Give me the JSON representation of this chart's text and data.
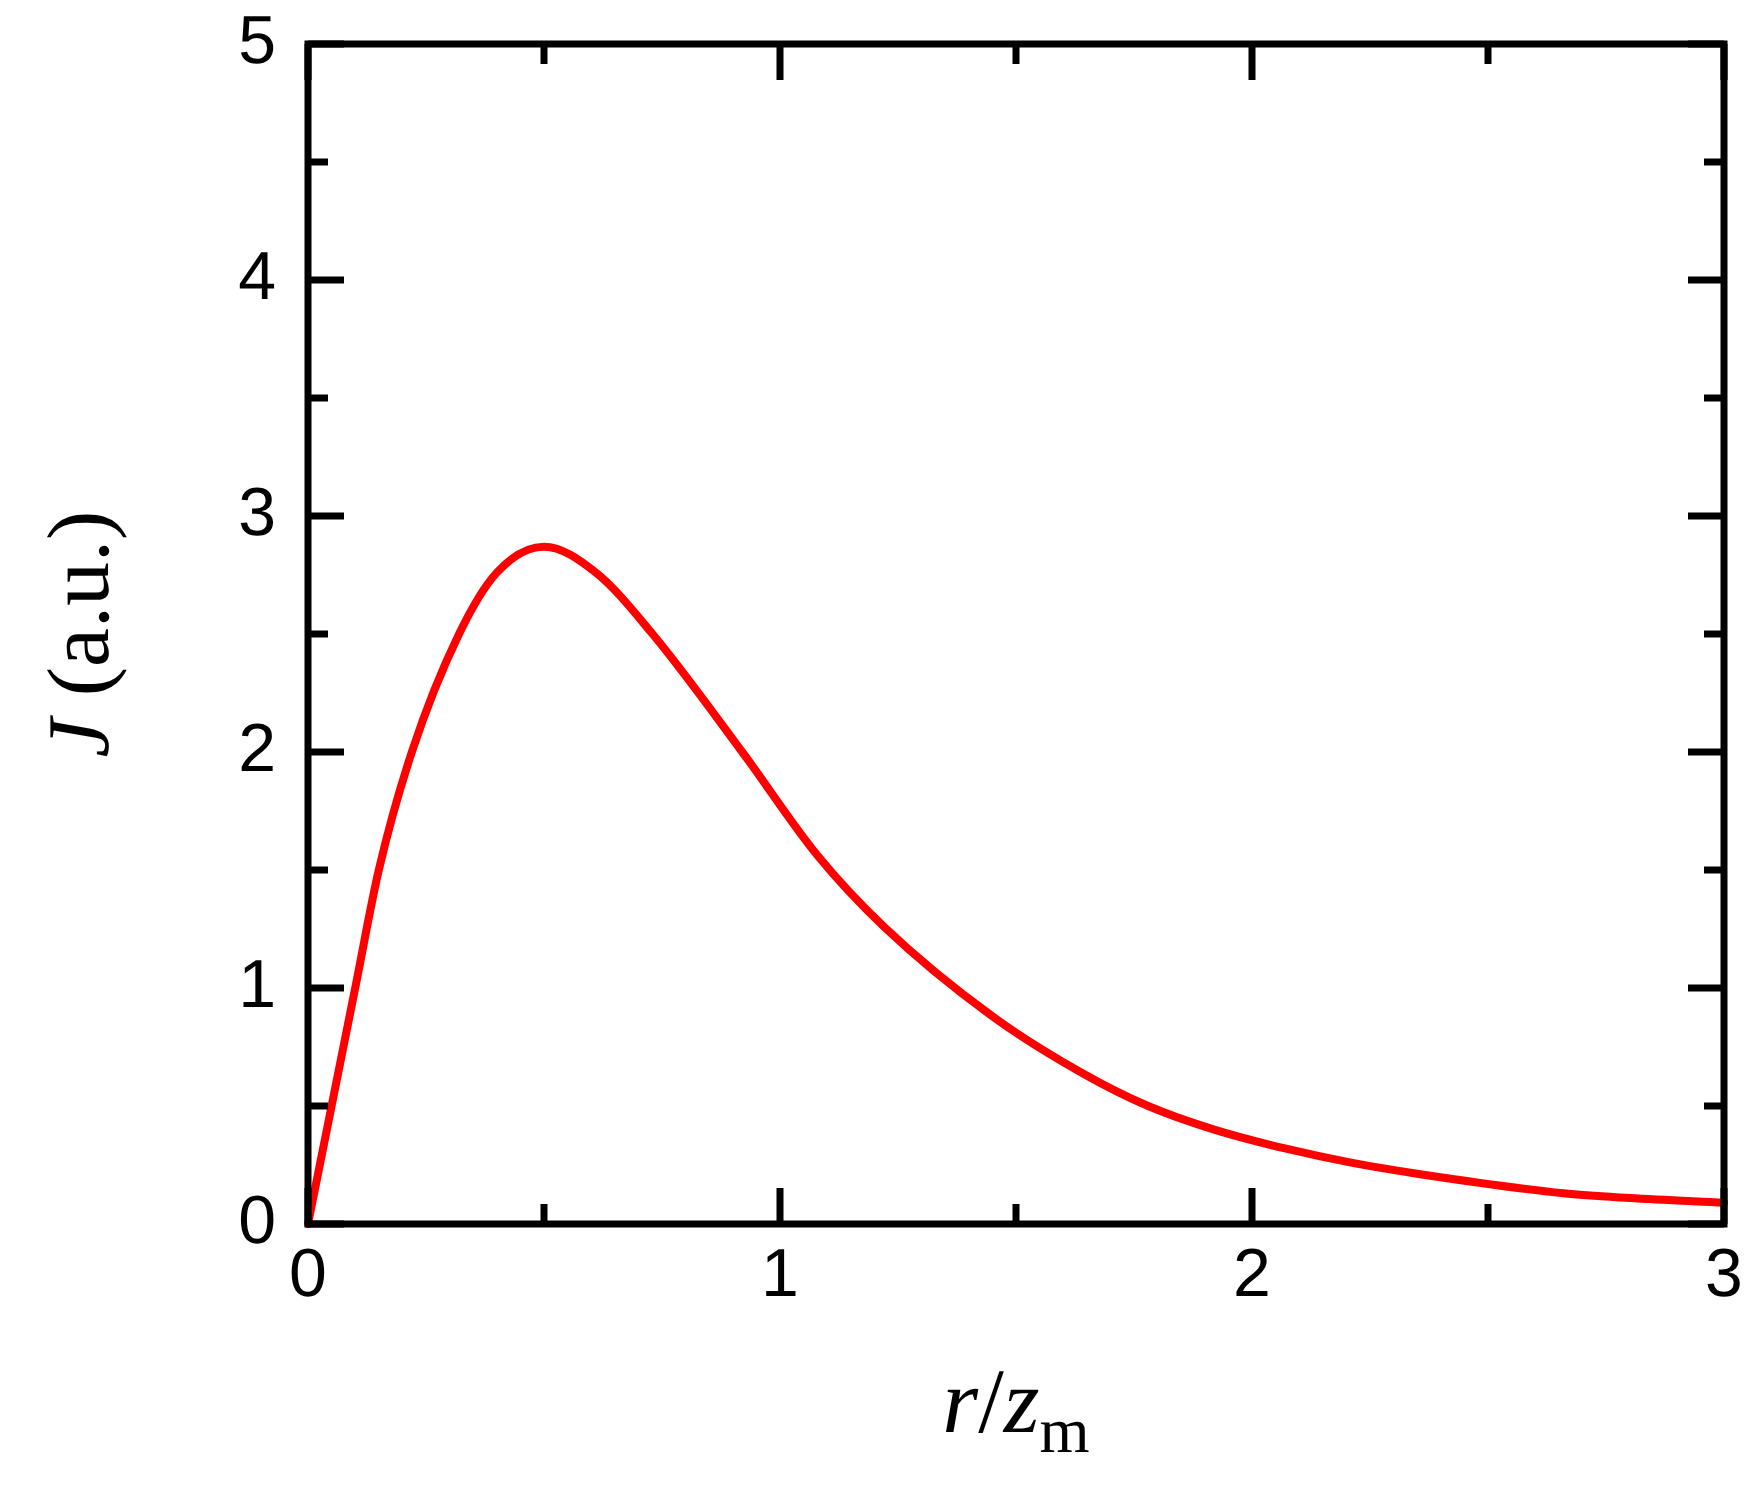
{
  "chart_data": {
    "type": "line",
    "xlabel": "r/z$_{m}$",
    "ylabel": "J (a.u.)",
    "x": [
      0,
      0.05,
      0.1,
      0.15,
      0.22,
      0.32,
      0.4,
      0.5,
      0.61,
      0.73,
      0.92,
      1.08,
      1.22,
      1.45,
      1.64,
      1.78,
      1.92,
      2.07,
      2.21,
      2.36,
      2.66,
      2.8,
      3
    ],
    "values": [
      0,
      0.5,
      1,
      1.5,
      2,
      2.5,
      2.76,
      2.87,
      2.76,
      2.5,
      2,
      1.56,
      1.26,
      0.88,
      0.64,
      0.5,
      0.4,
      0.32,
      0.26,
      0.21,
      0.13,
      0.11,
      0.09
    ],
    "color": "#ff0000",
    "marker": "none",
    "line_style": "solid",
    "grid": false,
    "legend": false,
    "xlim": [
      0,
      3
    ],
    "xticks": [
      0,
      {
        "value": 0.5,
        "label": null
      },
      1,
      {
        "value": 1.5,
        "label": null
      },
      2,
      {
        "value": 2.5,
        "label": null
      },
      3
    ],
    "ylim": [
      0,
      5
    ],
    "yticks": [
      0,
      {
        "value": 0.5,
        "label": null
      },
      1,
      {
        "value": 1.5,
        "label": null
      },
      2,
      {
        "value": 2.5,
        "label": null
      },
      3,
      {
        "value": 3.5,
        "label": null
      },
      4,
      {
        "value": 4.5,
        "label": null
      },
      5
    ]
  }
}
